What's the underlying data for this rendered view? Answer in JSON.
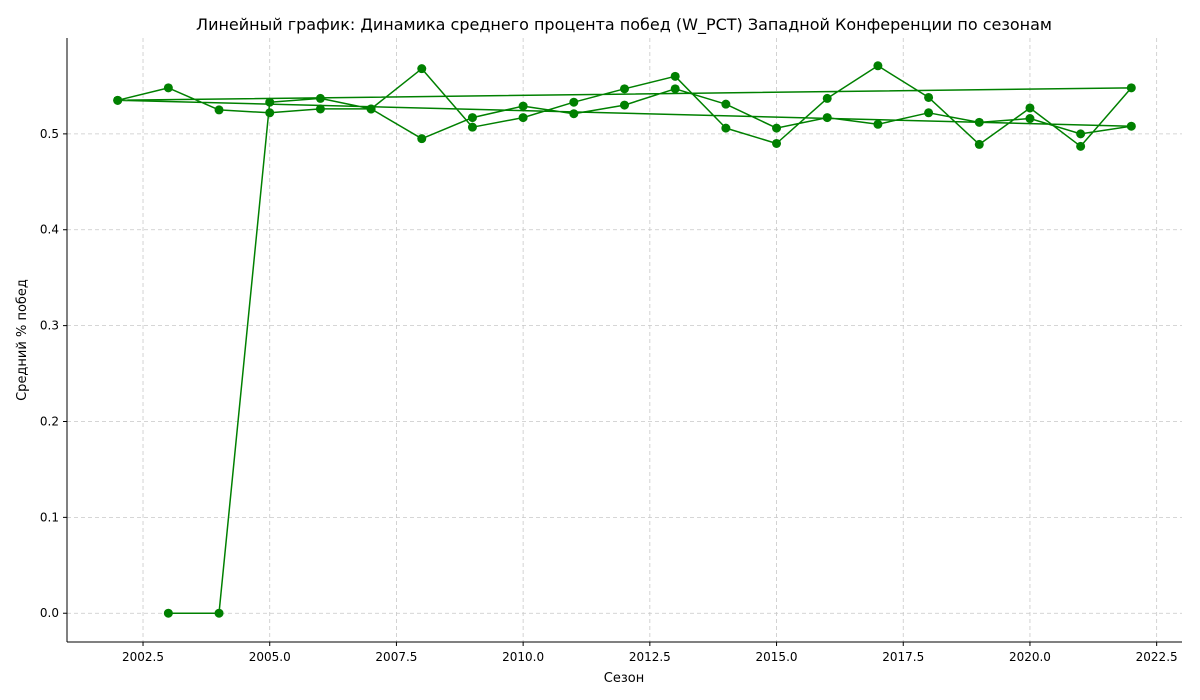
{
  "chart_data": {
    "type": "line",
    "title": "Линейный график: Динамика среднего процента побед (W_PCT) Западной Конференции по сезонам",
    "xlabel": "Сезон",
    "ylabel": "Средний % побед",
    "xlim": [
      2001.0,
      2023.0
    ],
    "ylim": [
      -0.03,
      0.6
    ],
    "xticks": [
      2002.5,
      2005.0,
      2007.5,
      2010.0,
      2012.5,
      2015.0,
      2017.5,
      2020.0,
      2022.5
    ],
    "xtick_labels": [
      "2002.5",
      "2005.0",
      "2007.5",
      "2010.0",
      "2012.5",
      "2015.0",
      "2017.5",
      "2020.0",
      "2022.5"
    ],
    "yticks": [
      0.0,
      0.1,
      0.2,
      0.3,
      0.4,
      0.5
    ],
    "ytick_labels": [
      "0.0",
      "0.1",
      "0.2",
      "0.3",
      "0.4",
      "0.5"
    ],
    "grid": true,
    "legend": "none",
    "series": [
      {
        "color": "#008000",
        "marker": "circle",
        "x": [
          2003,
          2004,
          2005,
          2006,
          2007,
          2008,
          2009,
          2010,
          2011,
          2012,
          2013,
          2014,
          2015,
          2016,
          2017,
          2018,
          2019,
          2020,
          2021,
          2022,
          2002,
          2003,
          2004,
          2005,
          2006,
          2007,
          2008,
          2009,
          2010,
          2011,
          2012,
          2013,
          2014,
          2015,
          2016,
          2017,
          2018,
          2019,
          2020,
          2021,
          2022,
          2002
        ],
        "y": [
          0.0,
          0.0,
          0.533,
          0.537,
          0.526,
          0.568,
          0.507,
          0.517,
          0.533,
          0.547,
          0.56,
          0.506,
          0.49,
          0.537,
          0.571,
          0.538,
          0.489,
          0.527,
          0.487,
          0.548,
          0.535,
          0.548,
          0.525,
          0.522,
          0.526,
          0.526,
          0.495,
          0.517,
          0.529,
          0.521,
          0.53,
          0.547,
          0.531,
          0.506,
          0.517,
          0.51,
          0.522,
          0.512,
          0.516,
          0.5,
          0.508,
          0.535
        ]
      }
    ]
  }
}
